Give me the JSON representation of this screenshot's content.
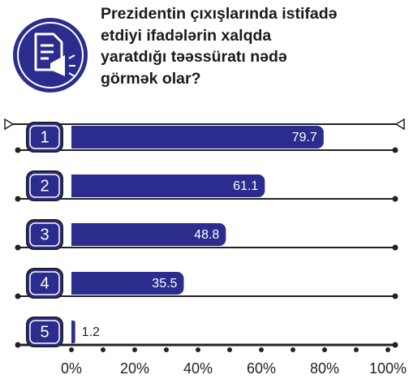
{
  "chart_data": {
    "type": "bar",
    "orientation": "horizontal",
    "title": "Prezidentin çıxışlarında istifadə etdiyi ifadələrin xalqda yaratdığı təəssüratı nədə görmək olar?",
    "categories": [
      "1",
      "2",
      "3",
      "4",
      "5"
    ],
    "values": [
      79.7,
      61.1,
      48.8,
      35.5,
      1.2
    ],
    "color": "#2c2c8e",
    "xlim": [
      0,
      100
    ],
    "xticks": [
      {
        "value": 0,
        "label": "0%"
      },
      {
        "value": 20,
        "label": "20%"
      },
      {
        "value": 40,
        "label": "40%"
      },
      {
        "value": 60,
        "label": "60%"
      },
      {
        "value": 80,
        "label": "80%"
      },
      {
        "value": 100,
        "label": "100%"
      }
    ]
  }
}
